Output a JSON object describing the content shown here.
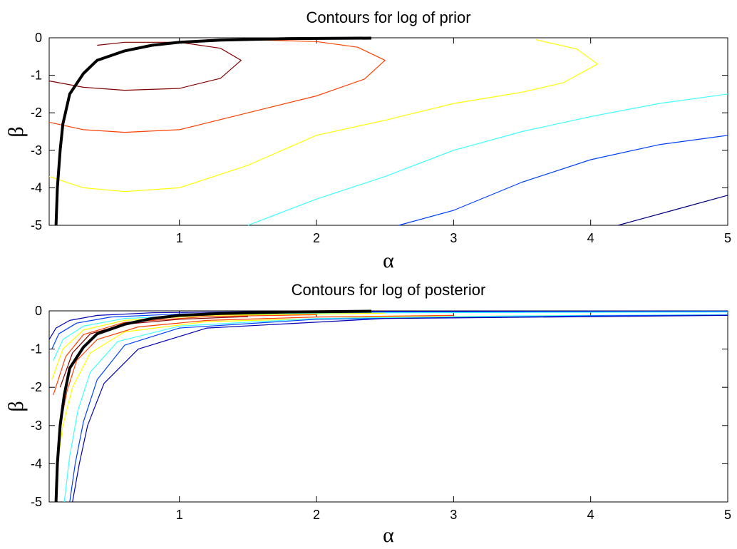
{
  "chart_data": [
    {
      "type": "contour",
      "title": "Contours for log of prior",
      "xlabel": "α",
      "ylabel": "β",
      "xlim": [
        0.05,
        5
      ],
      "ylim": [
        -5,
        0
      ],
      "xticks": [
        1,
        2,
        3,
        4,
        5
      ],
      "yticks": [
        0,
        -1,
        -2,
        -3,
        -4,
        -5
      ],
      "grid": false,
      "contours": [
        {
          "color": "#800000",
          "points": [
            [
              0.05,
              -1.15
            ],
            [
              0.3,
              -1.32
            ],
            [
              0.6,
              -1.4
            ],
            [
              1.0,
              -1.35
            ],
            [
              1.3,
              -1.08
            ],
            [
              1.45,
              -0.6
            ],
            [
              1.3,
              -0.28
            ],
            [
              1.0,
              -0.12
            ],
            [
              0.6,
              -0.12
            ],
            [
              0.4,
              -0.2
            ]
          ]
        },
        {
          "color": "#ff4000",
          "points": [
            [
              0.05,
              -2.25
            ],
            [
              0.3,
              -2.45
            ],
            [
              0.6,
              -2.52
            ],
            [
              1.0,
              -2.45
            ],
            [
              1.5,
              -2.0
            ],
            [
              2.0,
              -1.55
            ],
            [
              2.35,
              -1.1
            ],
            [
              2.5,
              -0.6
            ],
            [
              2.3,
              -0.25
            ],
            [
              2.0,
              -0.1
            ],
            [
              1.5,
              -0.05
            ],
            [
              1.2,
              -0.05
            ]
          ]
        },
        {
          "color": "#ffff00",
          "points": [
            [
              0.05,
              -3.7
            ],
            [
              0.3,
              -4.0
            ],
            [
              0.6,
              -4.1
            ],
            [
              1.0,
              -4.0
            ],
            [
              1.5,
              -3.4
            ],
            [
              2.0,
              -2.6
            ],
            [
              2.5,
              -2.2
            ],
            [
              3.0,
              -1.75
            ],
            [
              3.5,
              -1.45
            ],
            [
              3.8,
              -1.2
            ],
            [
              4.05,
              -0.7
            ],
            [
              3.9,
              -0.3
            ],
            [
              3.6,
              -0.05
            ]
          ]
        },
        {
          "color": "#40ffff",
          "points": [
            [
              1.5,
              -5.0
            ],
            [
              2.0,
              -4.3
            ],
            [
              2.5,
              -3.7
            ],
            [
              3.0,
              -3.0
            ],
            [
              3.5,
              -2.5
            ],
            [
              4.0,
              -2.1
            ],
            [
              4.5,
              -1.75
            ],
            [
              5.0,
              -1.5
            ]
          ]
        },
        {
          "color": "#0040ff",
          "points": [
            [
              2.6,
              -5.0
            ],
            [
              3.0,
              -4.6
            ],
            [
              3.5,
              -3.85
            ],
            [
              4.0,
              -3.25
            ],
            [
              4.5,
              -2.85
            ],
            [
              5.0,
              -2.6
            ]
          ]
        },
        {
          "color": "#000080",
          "points": [
            [
              4.2,
              -5.0
            ],
            [
              4.6,
              -4.6
            ],
            [
              5.0,
              -4.2
            ]
          ]
        },
        {
          "color": "#000000",
          "thick": true,
          "points": [
            [
              0.1,
              -5.0
            ],
            [
              0.11,
              -4.0
            ],
            [
              0.13,
              -3.0
            ],
            [
              0.15,
              -2.3
            ],
            [
              0.2,
              -1.5
            ],
            [
              0.3,
              -0.95
            ],
            [
              0.4,
              -0.6
            ],
            [
              0.6,
              -0.35
            ],
            [
              0.8,
              -0.2
            ],
            [
              1.0,
              -0.12
            ],
            [
              1.3,
              -0.06
            ],
            [
              1.8,
              -0.02
            ],
            [
              2.4,
              -0.01
            ]
          ]
        }
      ]
    },
    {
      "type": "contour",
      "title": "Contours for log of posterior",
      "xlabel": "α",
      "ylabel": "β",
      "xlim": [
        0.05,
        5
      ],
      "ylim": [
        -5,
        0
      ],
      "xticks": [
        1,
        2,
        3,
        4,
        5
      ],
      "yticks": [
        0,
        -1,
        -2,
        -3,
        -4,
        -5
      ],
      "grid": false,
      "contours": [
        {
          "color": "#0000b0",
          "points": [
            [
              0.05,
              -0.75
            ],
            [
              0.1,
              -0.45
            ],
            [
              0.2,
              -0.25
            ],
            [
              0.4,
              -0.12
            ],
            [
              0.8,
              -0.05
            ],
            [
              1.5,
              -0.02
            ],
            [
              3.0,
              -0.01
            ],
            [
              5.0,
              -0.005
            ]
          ]
        },
        {
          "color": "#0040ff",
          "points": [
            [
              0.07,
              -1.0
            ],
            [
              0.12,
              -0.6
            ],
            [
              0.25,
              -0.32
            ],
            [
              0.5,
              -0.16
            ],
            [
              1.0,
              -0.08
            ],
            [
              2.0,
              -0.04
            ],
            [
              4.0,
              -0.02
            ],
            [
              5.0,
              -0.015
            ]
          ]
        },
        {
          "color": "#40ffff",
          "points": [
            [
              0.08,
              -1.3
            ],
            [
              0.15,
              -0.75
            ],
            [
              0.3,
              -0.4
            ],
            [
              0.6,
              -0.2
            ],
            [
              1.2,
              -0.1
            ],
            [
              2.5,
              -0.05
            ],
            [
              5.0,
              -0.03
            ]
          ]
        },
        {
          "color": "#ffff00",
          "points": [
            [
              0.07,
              -1.8
            ],
            [
              0.15,
              -1.0
            ],
            [
              0.3,
              -0.5
            ],
            [
              0.6,
              -0.25
            ],
            [
              1.2,
              -0.12
            ],
            [
              2.5,
              -0.06
            ]
          ]
        },
        {
          "color": "#ff4000",
          "points": [
            [
              0.08,
              -2.2
            ],
            [
              0.17,
              -1.2
            ],
            [
              0.3,
              -0.62
            ],
            [
              0.6,
              -0.3
            ],
            [
              1.2,
              -0.15
            ],
            [
              2.0,
              -0.1
            ]
          ]
        },
        {
          "color": "#800000",
          "points": [
            [
              0.13,
              -2.0
            ],
            [
              0.22,
              -1.1
            ],
            [
              0.35,
              -0.6
            ],
            [
              0.6,
              -0.35
            ],
            [
              1.0,
              -0.22
            ],
            [
              1.5,
              -0.15
            ]
          ]
        },
        {
          "color": "#ff4000",
          "points": [
            [
              0.12,
              -3.2
            ],
            [
              0.18,
              -2.1
            ],
            [
              0.25,
              -1.3
            ],
            [
              0.4,
              -0.75
            ],
            [
              0.7,
              -0.42
            ],
            [
              1.2,
              -0.25
            ],
            [
              2.0,
              -0.16
            ],
            [
              3.0,
              -0.12
            ]
          ]
        },
        {
          "color": "#ffff00",
          "points": [
            [
              0.11,
              -4.0
            ],
            [
              0.15,
              -3.0
            ],
            [
              0.22,
              -2.0
            ],
            [
              0.35,
              -1.1
            ],
            [
              0.6,
              -0.55
            ],
            [
              1.2,
              -0.28
            ],
            [
              2.5,
              -0.16
            ],
            [
              4.0,
              -0.12
            ]
          ]
        },
        {
          "color": "#40ffff",
          "points": [
            [
              0.16,
              -5.0
            ],
            [
              0.2,
              -3.8
            ],
            [
              0.26,
              -2.6
            ],
            [
              0.35,
              -1.6
            ],
            [
              0.55,
              -0.8
            ],
            [
              1.0,
              -0.4
            ],
            [
              2.0,
              -0.2
            ],
            [
              3.5,
              -0.13
            ],
            [
              5.0,
              -0.1
            ]
          ]
        },
        {
          "color": "#0040ff",
          "points": [
            [
              0.2,
              -5.0
            ],
            [
              0.24,
              -4.0
            ],
            [
              0.3,
              -2.9
            ],
            [
              0.4,
              -1.8
            ],
            [
              0.6,
              -0.9
            ],
            [
              1.0,
              -0.45
            ],
            [
              2.0,
              -0.22
            ],
            [
              4.0,
              -0.13
            ],
            [
              5.0,
              -0.11
            ]
          ]
        },
        {
          "color": "#0000b0",
          "points": [
            [
              0.22,
              -5.0
            ],
            [
              0.27,
              -4.0
            ],
            [
              0.33,
              -3.0
            ],
            [
              0.45,
              -1.9
            ],
            [
              0.7,
              -1.0
            ],
            [
              1.2,
              -0.45
            ],
            [
              2.5,
              -0.2
            ],
            [
              5.0,
              -0.12
            ]
          ]
        },
        {
          "color": "#000000",
          "thick": true,
          "points": [
            [
              0.1,
              -5.0
            ],
            [
              0.11,
              -4.0
            ],
            [
              0.13,
              -3.0
            ],
            [
              0.16,
              -2.2
            ],
            [
              0.2,
              -1.5
            ],
            [
              0.3,
              -0.95
            ],
            [
              0.4,
              -0.6
            ],
            [
              0.6,
              -0.35
            ],
            [
              0.8,
              -0.2
            ],
            [
              1.0,
              -0.12
            ],
            [
              1.3,
              -0.07
            ],
            [
              1.8,
              -0.03
            ],
            [
              2.4,
              -0.01
            ]
          ]
        }
      ]
    }
  ]
}
